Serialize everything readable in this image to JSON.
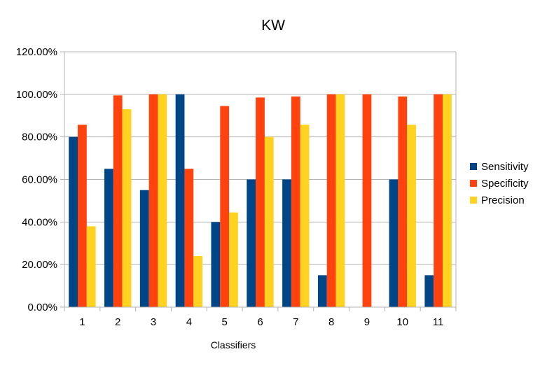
{
  "chart_data": {
    "type": "bar",
    "title": "KW",
    "xlabel": "Classifiers",
    "ylabel": "",
    "categories": [
      "1",
      "2",
      "3",
      "4",
      "5",
      "6",
      "7",
      "8",
      "9",
      "10",
      "11"
    ],
    "series": [
      {
        "name": "Sensitivity",
        "color": "#004586",
        "values": [
          80,
          65,
          55,
          100,
          40,
          60,
          60,
          15,
          0,
          60,
          15
        ]
      },
      {
        "name": "Specificity",
        "color": "#ff420e",
        "values": [
          85.7,
          99.5,
          100,
          65,
          94.5,
          98.5,
          99,
          100,
          100,
          99,
          100
        ]
      },
      {
        "name": "Precision",
        "color": "#ffd320",
        "values": [
          38,
          93,
          100,
          24,
          44.5,
          80,
          85.7,
          100,
          0,
          85.7,
          100
        ]
      }
    ],
    "yticks": [
      "0.00%",
      "20.00%",
      "40.00%",
      "60.00%",
      "80.00%",
      "100.00%",
      "120.00%"
    ],
    "ylim": [
      0,
      120
    ],
    "grid": true,
    "legend_position": "right"
  }
}
